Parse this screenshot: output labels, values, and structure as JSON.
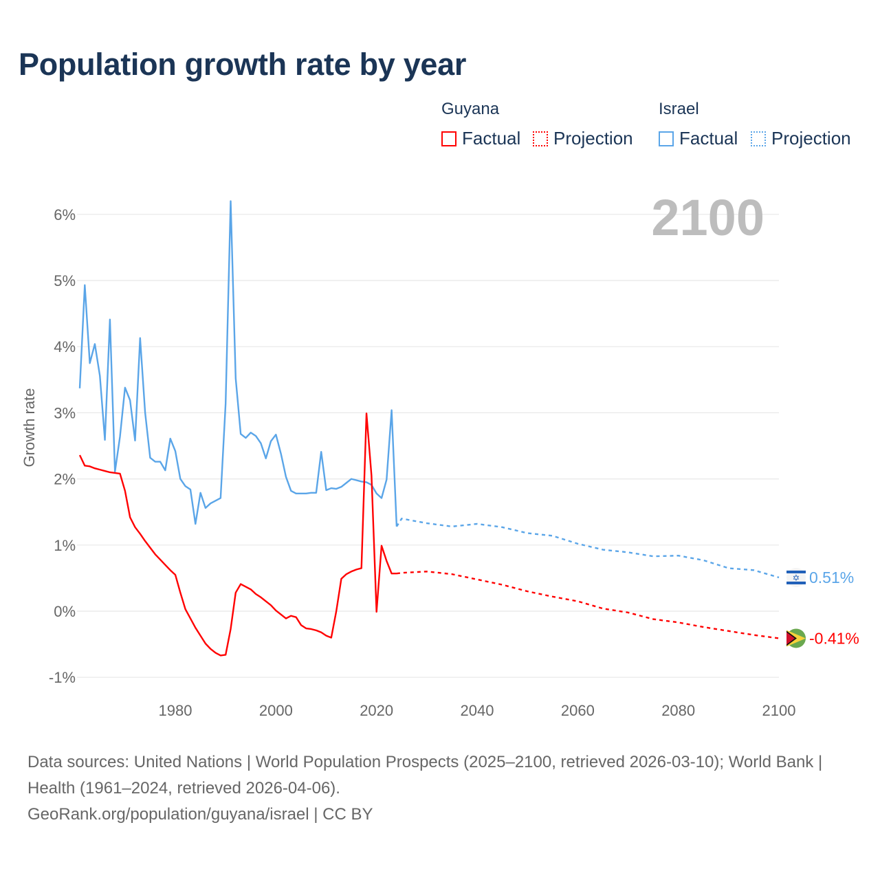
{
  "title": "Population growth rate by year",
  "legend": {
    "groups": [
      {
        "country": "Guyana",
        "color": "#ff0000",
        "factual_label": "Factual",
        "projection_label": "Projection"
      },
      {
        "country": "Israel",
        "color": "#5aa5e8",
        "factual_label": "Factual",
        "projection_label": "Projection"
      }
    ]
  },
  "chart_data": {
    "type": "line",
    "title": "Population growth rate by year",
    "ylabel": "Growth rate",
    "xlabel": "",
    "xlim": [
      1961,
      2100
    ],
    "ylim": [
      -1.3,
      6.4
    ],
    "x_ticks": [
      1980,
      2000,
      2020,
      2040,
      2060,
      2080,
      2100
    ],
    "y_ticks": [
      -1,
      0,
      1,
      2,
      3,
      4,
      5,
      6
    ],
    "y_tick_labels": [
      "-1%",
      "0%",
      "1%",
      "2%",
      "3%",
      "4%",
      "5%",
      "6%"
    ],
    "grid": true,
    "year_watermark": "2100",
    "series": [
      {
        "name": "Israel",
        "color": "#5aa5e8",
        "end_label": "0.51%",
        "flag": "israel-flag",
        "factual": {
          "start_year": 1961,
          "values": [
            3.37,
            4.93,
            3.75,
            4.04,
            3.56,
            2.59,
            4.41,
            2.11,
            2.64,
            3.38,
            3.19,
            2.58,
            4.13,
            3.0,
            2.32,
            2.26,
            2.26,
            2.13,
            2.61,
            2.42,
            2.0,
            1.89,
            1.84,
            1.32,
            1.79,
            1.56,
            1.63,
            1.67,
            1.71,
            3.14,
            6.2,
            3.52,
            2.68,
            2.62,
            2.7,
            2.65,
            2.54,
            2.31,
            2.57,
            2.67,
            2.38,
            2.03,
            1.82,
            1.78,
            1.78,
            1.78,
            1.79,
            1.79,
            2.41,
            1.83,
            1.86,
            1.85,
            1.88,
            1.94,
            2.0,
            1.98,
            1.96,
            1.95,
            1.91,
            1.78,
            1.71,
            1.99,
            3.04,
            1.28
          ]
        },
        "projection": {
          "years": [
            2024,
            2025,
            2030,
            2035,
            2040,
            2045,
            2050,
            2055,
            2060,
            2065,
            2070,
            2075,
            2080,
            2085,
            2090,
            2095,
            2100
          ],
          "values": [
            1.28,
            1.4,
            1.33,
            1.28,
            1.32,
            1.27,
            1.18,
            1.14,
            1.02,
            0.93,
            0.89,
            0.83,
            0.84,
            0.77,
            0.65,
            0.62,
            0.51
          ]
        }
      },
      {
        "name": "Guyana",
        "color": "#ff0000",
        "end_label": "-0.41%",
        "flag": "guyana-flag",
        "factual": {
          "start_year": 1961,
          "values": [
            2.36,
            2.2,
            2.19,
            2.16,
            2.14,
            2.12,
            2.1,
            2.09,
            2.08,
            1.82,
            1.42,
            1.27,
            1.17,
            1.06,
            0.96,
            0.86,
            0.78,
            0.7,
            0.62,
            0.55,
            0.28,
            0.03,
            -0.11,
            -0.25,
            -0.37,
            -0.49,
            -0.57,
            -0.63,
            -0.67,
            -0.66,
            -0.27,
            0.28,
            0.41,
            0.37,
            0.33,
            0.26,
            0.21,
            0.15,
            0.09,
            0.01,
            -0.05,
            -0.11,
            -0.07,
            -0.09,
            -0.21,
            -0.26,
            -0.27,
            -0.29,
            -0.32,
            -0.37,
            -0.4,
            0.0,
            0.49,
            0.56,
            0.6,
            0.63,
            0.65,
            2.99,
            2.05,
            -0.01,
            0.99,
            0.76,
            0.57,
            0.57
          ]
        },
        "projection": {
          "years": [
            2024,
            2025,
            2030,
            2035,
            2040,
            2045,
            2050,
            2055,
            2060,
            2065,
            2070,
            2075,
            2080,
            2085,
            2090,
            2095,
            2100
          ],
          "values": [
            0.57,
            0.58,
            0.6,
            0.56,
            0.48,
            0.4,
            0.3,
            0.22,
            0.15,
            0.04,
            -0.02,
            -0.12,
            -0.17,
            -0.24,
            -0.3,
            -0.36,
            -0.41
          ]
        }
      }
    ]
  },
  "footer": {
    "sources": "Data sources: United Nations | World Population Prospects (2025–2100, retrieved 2026-03-10); World Bank | Health (1961–2024, retrieved 2026-04-06).",
    "attribution": "GeoRank.org/population/guyana/israel | CC BY"
  }
}
